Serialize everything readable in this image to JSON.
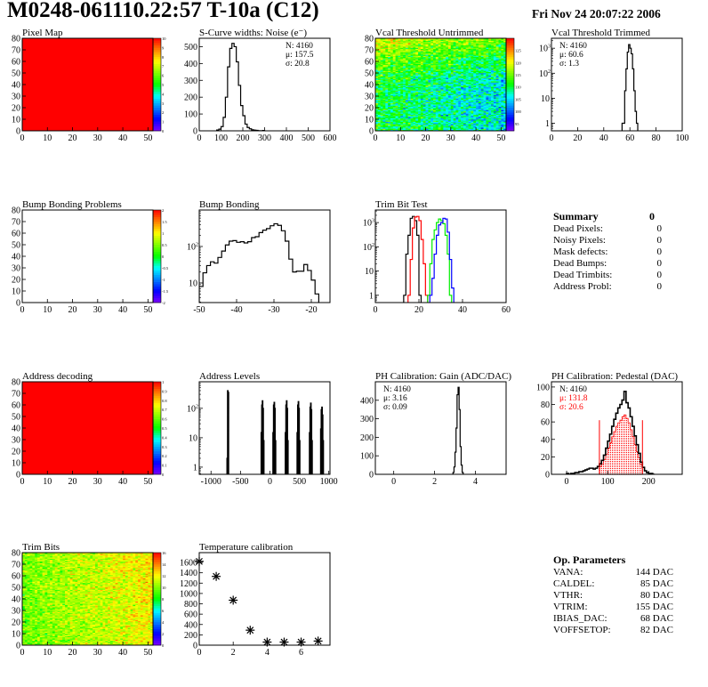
{
  "header": {
    "title": "M0248-061110.22:57 T-10a (C12)",
    "date": "Fri Nov 24 20:07:22 2006"
  },
  "palette": [
    "#7f00ff",
    "#0000ff",
    "#0080ff",
    "#00ffff",
    "#00ff00",
    "#80ff00",
    "#ffff00",
    "#ff8000",
    "#ff0000"
  ],
  "chart_data": [
    {
      "id": "pixel_map",
      "type": "heatmap",
      "title": "Pixel Map",
      "xlim": [
        0,
        52
      ],
      "ylim": [
        0,
        80
      ],
      "xticks": [
        0,
        10,
        20,
        30,
        40,
        50
      ],
      "yticks": [
        0,
        10,
        20,
        30,
        40,
        50,
        60,
        70,
        80
      ],
      "zlim": [
        0,
        10
      ],
      "zticks": [
        0,
        1,
        2,
        3,
        4,
        5,
        6,
        7,
        8,
        9,
        10
      ],
      "uniform_value": 10
    },
    {
      "id": "noise",
      "type": "bar",
      "title": "S-Curve widths: Noise (e⁻)",
      "xlim": [
        0,
        600
      ],
      "ylim": [
        0,
        550
      ],
      "yscale": "linear",
      "xticks": [
        0,
        100,
        200,
        300,
        400,
        500,
        600
      ],
      "yticks": [
        0,
        100,
        200,
        300,
        400,
        500
      ],
      "stats_pos": "right",
      "stats": [
        {
          "text": "N: 4160",
          "color": "#000000"
        },
        {
          "text": "μ: 157.5",
          "color": "#000000"
        },
        {
          "text": "σ: 20.8",
          "color": "#000000"
        }
      ],
      "series": [
        {
          "color": "#000000",
          "x_start": 80,
          "bin_width": 10,
          "counts": [
            5,
            10,
            25,
            80,
            200,
            380,
            490,
            520,
            500,
            410,
            270,
            150,
            90,
            40,
            20,
            12,
            6,
            4,
            3,
            1,
            0,
            2
          ]
        }
      ]
    },
    {
      "id": "vcal_untrimmed",
      "type": "heatmap",
      "title": "Vcal Threshold Untrimmed",
      "xlim": [
        0,
        52
      ],
      "ylim": [
        0,
        80
      ],
      "xticks": [
        0,
        10,
        20,
        30,
        40,
        50
      ],
      "yticks": [
        0,
        10,
        20,
        30,
        40,
        50,
        60,
        70,
        80
      ],
      "zlim": [
        92,
        130
      ],
      "zticks": [
        95,
        100,
        105,
        110,
        115,
        120,
        125
      ]
    },
    {
      "id": "vcal_trimmed",
      "type": "bar",
      "title": "Vcal Threshold Trimmed",
      "xlim": [
        0,
        100
      ],
      "ylim": [
        0.5,
        2500
      ],
      "yscale": "log",
      "xticks": [
        0,
        20,
        40,
        60,
        80,
        100
      ],
      "yticks": [
        1,
        10,
        100,
        1000
      ],
      "stats_pos": "left",
      "stats": [
        {
          "text": "N: 4160",
          "color": "#000000"
        },
        {
          "text": "μ: 60.6",
          "color": "#000000"
        },
        {
          "text": "σ:  1.3",
          "color": "#000000"
        }
      ],
      "series": [
        {
          "color": "#000000",
          "x_start": 54,
          "bin_width": 1,
          "counts": [
            1,
            1,
            20,
            150,
            700,
            1400,
            1000,
            600,
            150,
            20,
            3,
            1
          ]
        }
      ]
    },
    {
      "id": "bump_problems",
      "type": "heatmap",
      "title": "Bump Bonding Problems",
      "xlim": [
        0,
        52
      ],
      "ylim": [
        0,
        80
      ],
      "xticks": [
        0,
        10,
        20,
        30,
        40,
        50
      ],
      "yticks": [
        0,
        10,
        20,
        30,
        40,
        50,
        60,
        70,
        80
      ],
      "zlim": [
        -2,
        2
      ],
      "zticks": [
        -2,
        -1.5,
        -1,
        -0.5,
        0,
        0.5,
        1,
        1.5,
        2
      ]
    },
    {
      "id": "bump_bonding",
      "type": "bar",
      "title": "Bump Bonding",
      "xlim": [
        -50,
        -15
      ],
      "ylim": [
        2.9,
        1000
      ],
      "yscale": "log",
      "xticks": [
        -50,
        -40,
        -30,
        -20
      ],
      "yticks": [
        10,
        100
      ],
      "series": [
        {
          "color": "#000000",
          "x_start": -50,
          "bin_width": 1,
          "counts": [
            8,
            19,
            30,
            38,
            35,
            50,
            75,
            110,
            140,
            145,
            130,
            135,
            125,
            135,
            175,
            185,
            240,
            280,
            310,
            370,
            420,
            380,
            270,
            140,
            45,
            20,
            21,
            21,
            32,
            22,
            12,
            5
          ]
        }
      ]
    },
    {
      "id": "trim_bit_test",
      "type": "bar",
      "title": "Trim Bit Test",
      "xlim": [
        0,
        60
      ],
      "ylim": [
        0.5,
        3300
      ],
      "yscale": "log",
      "xticks": [
        0,
        20,
        40,
        60
      ],
      "yticks": [
        1,
        10,
        100,
        1000
      ],
      "series": [
        {
          "color": "#000000",
          "x_start": 13,
          "bin_width": 1,
          "counts": [
            1,
            50,
            300,
            1500,
            1800,
            1200,
            300,
            1
          ]
        },
        {
          "color": "#ff0000",
          "x_start": 15,
          "bin_width": 1,
          "counts": [
            1,
            30,
            600,
            1700,
            1800,
            1200,
            200,
            20,
            1
          ]
        },
        {
          "color": "#00ee00",
          "x_start": 24,
          "bin_width": 1,
          "counts": [
            1,
            20,
            200,
            500,
            1000,
            1400,
            1200,
            900,
            300,
            50,
            1
          ]
        },
        {
          "color": "#0000ff",
          "x_start": 25,
          "bin_width": 1,
          "counts": [
            1,
            5,
            50,
            300,
            800,
            1000,
            1500,
            1400,
            400,
            30,
            2
          ]
        }
      ]
    },
    {
      "id": "address_decoding",
      "type": "heatmap",
      "title": "Address decoding",
      "xlim": [
        0,
        52
      ],
      "ylim": [
        0,
        80
      ],
      "xticks": [
        0,
        10,
        20,
        30,
        40,
        50
      ],
      "yticks": [
        0,
        10,
        20,
        30,
        40,
        50,
        60,
        70,
        80
      ],
      "zlim": [
        0,
        1
      ],
      "zticks": [
        0,
        0.1,
        0.2,
        0.3,
        0.4,
        0.5,
        0.6,
        0.7,
        0.8,
        0.9,
        1
      ],
      "uniform_value": 1
    },
    {
      "id": "address_levels",
      "type": "bar",
      "title": "Address Levels",
      "xlim": [
        -1200,
        1020
      ],
      "ylim": [
        0.57,
        800
      ],
      "yscale": "log",
      "xticks": [
        -1000,
        -500,
        0,
        500,
        1000
      ],
      "yticks": [
        1,
        10,
        100
      ],
      "series": [
        {
          "color": "#000000",
          "bin_width": 10,
          "bins": [
            [
              -730,
              2
            ],
            [
              -720,
              400
            ],
            [
              -710,
              350
            ],
            [
              -150,
              15
            ],
            [
              -140,
              130
            ],
            [
              -130,
              180
            ],
            [
              -120,
              100
            ],
            [
              -110,
              8
            ],
            [
              50,
              15
            ],
            [
              60,
              130
            ],
            [
              70,
              160
            ],
            [
              80,
              100
            ],
            [
              90,
              8
            ],
            [
              260,
              15
            ],
            [
              270,
              130
            ],
            [
              280,
              180
            ],
            [
              290,
              100
            ],
            [
              300,
              8
            ],
            [
              460,
              15
            ],
            [
              470,
              130
            ],
            [
              480,
              170
            ],
            [
              490,
              100
            ],
            [
              500,
              8
            ],
            [
              670,
              15
            ],
            [
              680,
              110
            ],
            [
              690,
              150
            ],
            [
              700,
              90
            ],
            [
              710,
              8
            ],
            [
              860,
              20
            ],
            [
              870,
              90
            ],
            [
              880,
              110
            ],
            [
              890,
              60
            ],
            [
              900,
              8
            ]
          ]
        }
      ]
    },
    {
      "id": "gain",
      "type": "bar",
      "title": "PH Calibration: Gain (ADC/DAC)",
      "xlim": [
        -0.9,
        5.5
      ],
      "ylim": [
        0,
        500
      ],
      "yscale": "linear",
      "xticks": [
        0,
        2,
        4
      ],
      "yticks": [
        0,
        100,
        200,
        300,
        400
      ],
      "stats_pos": "left",
      "stats": [
        {
          "text": "N: 4160",
          "color": "#000000"
        },
        {
          "text": "μ: 3.16",
          "color": "#000000"
        },
        {
          "text": "σ: 0.09",
          "color": "#000000"
        }
      ],
      "series": [
        {
          "color": "#000000",
          "x_start": 2.9,
          "bin_width": 0.05,
          "counts": [
            10,
            40,
            120,
            250,
            430,
            470,
            350,
            150,
            50,
            10
          ]
        }
      ]
    },
    {
      "id": "pedestal",
      "type": "bar",
      "title": "PH Calibration: Pedestal (DAC)",
      "xlim": [
        -37,
        282
      ],
      "ylim": [
        0,
        106
      ],
      "yscale": "linear",
      "xticks": [
        0,
        100,
        200
      ],
      "yticks": [
        0,
        20,
        40,
        60,
        80,
        100
      ],
      "stats_pos": "left",
      "stats": [
        {
          "text": "N: 4160",
          "color": "#000000"
        },
        {
          "text": "μ: 131.8",
          "color": "#ff0000"
        },
        {
          "text": "σ: 20.6",
          "color": "#ff0000"
        }
      ],
      "cut_lines": {
        "color": "#ff0000",
        "x": [
          80,
          185
        ],
        "height": 62
      },
      "series": [
        {
          "color": "#ff0000",
          "fill": "dotted",
          "x_start": 80,
          "bin_width": 5,
          "counts": [
            9,
            12,
            17,
            23,
            30,
            36,
            43,
            49,
            55,
            59,
            62,
            66,
            68,
            64,
            59,
            51,
            43,
            34,
            26,
            19,
            11
          ]
        },
        {
          "color": "#000000",
          "x_start": 0,
          "bin_width": 5,
          "counts": [
            1,
            0,
            1,
            1,
            2,
            2,
            3,
            3,
            4,
            5,
            6,
            7,
            7,
            6,
            7,
            9,
            12,
            16,
            22,
            30,
            38,
            46,
            55,
            63,
            70,
            76,
            80,
            85,
            95,
            82,
            76,
            66,
            55,
            44,
            34,
            24,
            14,
            8,
            4,
            2,
            1,
            1,
            0
          ]
        }
      ]
    },
    {
      "id": "trim_bits",
      "type": "heatmap",
      "title": "Trim Bits",
      "xlim": [
        0,
        52
      ],
      "ylim": [
        0,
        80
      ],
      "xticks": [
        0,
        10,
        20,
        30,
        40,
        50
      ],
      "yticks": [
        0,
        10,
        20,
        30,
        40,
        50,
        60,
        70,
        80
      ],
      "zlim": [
        0,
        16
      ],
      "zticks": [
        0,
        2,
        4,
        6,
        8,
        10,
        12,
        14,
        16
      ]
    },
    {
      "id": "temperature",
      "type": "scatter",
      "title": "Temperature calibration",
      "xlim": [
        0,
        7.7
      ],
      "ylim": [
        0,
        1790
      ],
      "yscale": "linear",
      "xticks": [
        0,
        2,
        4,
        6
      ],
      "yticks": [
        0,
        200,
        400,
        600,
        800,
        1000,
        1200,
        1400,
        1600
      ],
      "points": [
        [
          0,
          1620
        ],
        [
          1,
          1330
        ],
        [
          2,
          870
        ],
        [
          3,
          290
        ],
        [
          4,
          60
        ],
        [
          5,
          60
        ],
        [
          6,
          60
        ],
        [
          7,
          80
        ]
      ]
    }
  ],
  "summary": {
    "title": "Summary",
    "total": "0",
    "rows": [
      {
        "label": "Dead Pixels:",
        "value": "0"
      },
      {
        "label": "Noisy Pixels:",
        "value": "0"
      },
      {
        "label": "Mask defects:",
        "value": "0"
      },
      {
        "label": "Dead Bumps:",
        "value": "0"
      },
      {
        "label": "Dead Trimbits:",
        "value": "0"
      },
      {
        "label": "Address Probl:",
        "value": "0"
      }
    ]
  },
  "op_parameters": {
    "title": "Op. Parameters",
    "rows": [
      {
        "label": "VANA:",
        "value": "144 DAC"
      },
      {
        "label": "CALDEL:",
        "value": "85 DAC"
      },
      {
        "label": "VTHR:",
        "value": "80 DAC"
      },
      {
        "label": "VTRIM:",
        "value": "155 DAC"
      },
      {
        "label": "IBIAS_DAC:",
        "value": "68 DAC"
      },
      {
        "label": "VOFFSETOP:",
        "value": "82 DAC"
      }
    ]
  }
}
